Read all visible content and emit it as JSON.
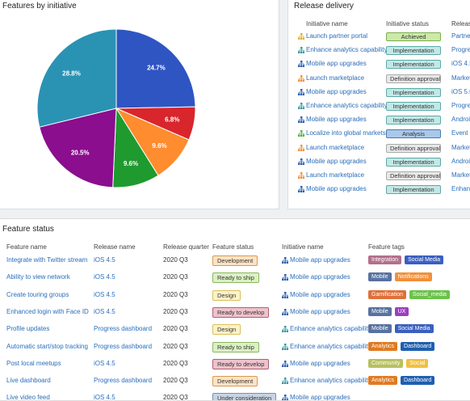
{
  "chart_data": {
    "type": "pie",
    "title": "Features by initiative",
    "values": [
      24.7,
      6.8,
      9.6,
      9.6,
      20.5,
      28.8
    ],
    "value_labels": [
      "24.7%",
      "6.8%",
      "9.6%",
      "9.6%",
      "20.5%",
      "28.8%"
    ],
    "colors": [
      "#2f55c3",
      "#d8262c",
      "#ff8c2e",
      "#1f9a2e",
      "#8a0e8e",
      "#2a93b4"
    ]
  },
  "release_delivery": {
    "title": "Release delivery",
    "columns": [
      "Initiative name",
      "Initiative status",
      "Release"
    ],
    "rows": [
      {
        "initiative": "Launch partner portal",
        "icon_color": "#e0b030",
        "status": {
          "label": "Achieved",
          "bg": "#cde8a8",
          "border": "#7ab04a"
        },
        "release": "Partner"
      },
      {
        "initiative": "Enhance analytics capability",
        "icon_color": "#3a9aa0",
        "status": {
          "label": "Implementation",
          "bg": "#c4e8e6",
          "border": "#5aaaa6"
        },
        "release": "Progres"
      },
      {
        "initiative": "Mobile app upgrades",
        "icon_color": "#2f5fb0",
        "status": {
          "label": "Implementation",
          "bg": "#c4e8e6",
          "border": "#5aaaa6"
        },
        "release": "iOS 4.5"
      },
      {
        "initiative": "Launch marketplace",
        "icon_color": "#f0903a",
        "status": {
          "label": "Definition approval",
          "bg": "#e8e8e8",
          "border": "#aaaaaa"
        },
        "release": "Marketp"
      },
      {
        "initiative": "Mobile app upgrades",
        "icon_color": "#2f5fb0",
        "status": {
          "label": "Implementation",
          "bg": "#c4e8e6",
          "border": "#5aaaa6"
        },
        "release": "iOS 5.0"
      },
      {
        "initiative": "Enhance analytics capability",
        "icon_color": "#3a9aa0",
        "status": {
          "label": "Implementation",
          "bg": "#c4e8e6",
          "border": "#5aaaa6"
        },
        "release": "Progres"
      },
      {
        "initiative": "Mobile app upgrades",
        "icon_color": "#2f5fb0",
        "status": {
          "label": "Implementation",
          "bg": "#c4e8e6",
          "border": "#5aaaa6"
        },
        "release": "Android"
      },
      {
        "initiative": "Localize into global markets",
        "icon_color": "#5ab040",
        "status": {
          "label": "Analysis",
          "bg": "#a9c8ea",
          "border": "#4a7ab0"
        },
        "release": "Event c"
      },
      {
        "initiative": "Launch marketplace",
        "icon_color": "#f0903a",
        "status": {
          "label": "Definition approval",
          "bg": "#e8e8e8",
          "border": "#aaaaaa"
        },
        "release": "Marketp"
      },
      {
        "initiative": "Mobile app upgrades",
        "icon_color": "#2f5fb0",
        "status": {
          "label": "Implementation",
          "bg": "#c4e8e6",
          "border": "#5aaaa6"
        },
        "release": "Android"
      },
      {
        "initiative": "Launch marketplace",
        "icon_color": "#f0903a",
        "status": {
          "label": "Definition approval",
          "bg": "#e8e8e8",
          "border": "#aaaaaa"
        },
        "release": "Marketp"
      },
      {
        "initiative": "Mobile app upgrades",
        "icon_color": "#2f5fb0",
        "status": {
          "label": "Implementation",
          "bg": "#c4e8e6",
          "border": "#5aaaa6"
        },
        "release": "Enhanc"
      }
    ]
  },
  "feature_status": {
    "title": "Feature status",
    "columns": [
      "Feature name",
      "Release name",
      "Release quarter",
      "Feature status",
      "Initiative name",
      "Feature tags"
    ],
    "rows": [
      {
        "feature": "Integrate with Twitter stream",
        "release": "iOS 4.5",
        "quarter": "2020 Q3",
        "status": {
          "label": "Development",
          "bg": "#fde3c4",
          "border": "#d89a50"
        },
        "initiative": "Mobile app upgrades",
        "icon_color": "#2f5fb0",
        "tags": [
          {
            "label": "Integration",
            "color": "#b3708a"
          },
          {
            "label": "Social Media",
            "color": "#3a5fc0"
          }
        ]
      },
      {
        "feature": "Ability to view network",
        "release": "iOS 4.5",
        "quarter": "2020 Q3",
        "status": {
          "label": "Ready to ship",
          "bg": "#dcf0c4",
          "border": "#8ab860"
        },
        "initiative": "Mobile app upgrades",
        "icon_color": "#2f5fb0",
        "tags": [
          {
            "label": "Mobile",
            "color": "#5872a0"
          },
          {
            "label": "Notifications",
            "color": "#f0903a"
          }
        ]
      },
      {
        "feature": "Create touring groups",
        "release": "iOS 4.5",
        "quarter": "2020 Q3",
        "status": {
          "label": "Design",
          "bg": "#fdf2c4",
          "border": "#d8c060"
        },
        "initiative": "Mobile app upgrades",
        "icon_color": "#2f5fb0",
        "tags": [
          {
            "label": "Gamification",
            "color": "#e0703a"
          },
          {
            "label": "Social_media",
            "color": "#6cc24a"
          }
        ]
      },
      {
        "feature": "Enhanced login with Face ID",
        "release": "iOS 4.5",
        "quarter": "2020 Q3",
        "status": {
          "label": "Ready to develop",
          "bg": "#eec2cc",
          "border": "#b06070"
        },
        "initiative": "Mobile app upgrades",
        "icon_color": "#2f5fb0",
        "tags": [
          {
            "label": "Mobile",
            "color": "#5872a0"
          },
          {
            "label": "UX",
            "color": "#9b3fc0"
          }
        ]
      },
      {
        "feature": "Profile updates",
        "release": "Progress dashboard",
        "quarter": "2020 Q3",
        "status": {
          "label": "Design",
          "bg": "#fdf2c4",
          "border": "#d8c060"
        },
        "initiative": "Enhance analytics capability",
        "icon_color": "#3a9aa0",
        "tags": [
          {
            "label": "Mobile",
            "color": "#5872a0"
          },
          {
            "label": "Social Media",
            "color": "#3a5fc0"
          }
        ]
      },
      {
        "feature": "Automatic start/stop tracking",
        "release": "Progress dashboard",
        "quarter": "2020 Q3",
        "status": {
          "label": "Ready to ship",
          "bg": "#dcf0c4",
          "border": "#8ab860"
        },
        "initiative": "Enhance analytics capability",
        "icon_color": "#3a9aa0",
        "tags": [
          {
            "label": "Analytics",
            "color": "#e07a20"
          },
          {
            "label": "Dashboard",
            "color": "#1f5fb0"
          }
        ]
      },
      {
        "feature": "Post local meetups",
        "release": "iOS 4.5",
        "quarter": "2020 Q3",
        "status": {
          "label": "Ready to develop",
          "bg": "#eec2cc",
          "border": "#b06070"
        },
        "initiative": "Mobile app upgrades",
        "icon_color": "#2f5fb0",
        "tags": [
          {
            "label": "Community",
            "color": "#b8c060"
          },
          {
            "label": "Social",
            "color": "#f0c040"
          }
        ]
      },
      {
        "feature": "Live dashboard",
        "release": "Progress dashboard",
        "quarter": "2020 Q3",
        "status": {
          "label": "Development",
          "bg": "#fde3c4",
          "border": "#d89a50"
        },
        "initiative": "Enhance analytics capability",
        "icon_color": "#3a9aa0",
        "tags": [
          {
            "label": "Analytics",
            "color": "#e07a20"
          },
          {
            "label": "Dashboard",
            "color": "#1f5fb0"
          }
        ]
      },
      {
        "feature": "Live video feed",
        "release": "iOS 4.5",
        "quarter": "2020 Q3",
        "status": {
          "label": "Under consideration",
          "bg": "#c8d4e4",
          "border": "#7890b0"
        },
        "initiative": "Mobile app upgrades",
        "icon_color": "#2f5fb0",
        "tags": []
      }
    ]
  }
}
